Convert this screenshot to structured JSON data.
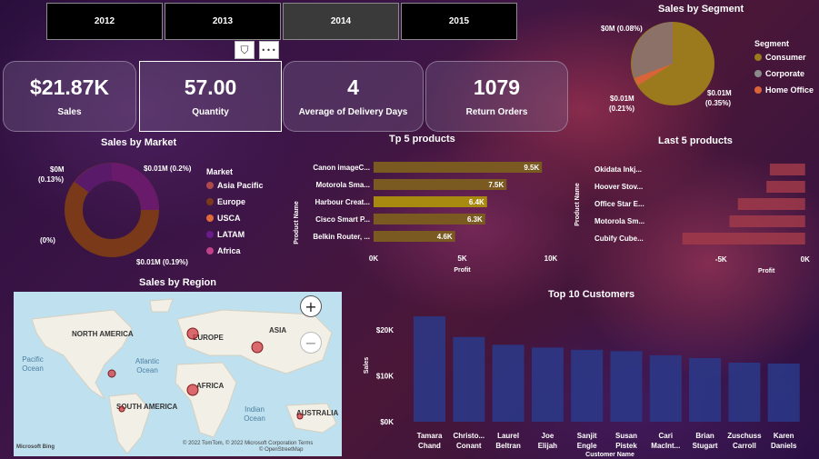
{
  "years": [
    {
      "label": "2012",
      "selected": false
    },
    {
      "label": "2013",
      "selected": false
    },
    {
      "label": "2014",
      "selected": true
    },
    {
      "label": "2015",
      "selected": false
    }
  ],
  "toolbar": {
    "filter_icon": "filter-icon",
    "more_icon": "more-options-icon",
    "more_glyph": "•••",
    "filter_glyph": "⛉"
  },
  "kpis": [
    {
      "value": "$21.87K",
      "label": "Sales"
    },
    {
      "value": "57.00",
      "label": "Quantity"
    },
    {
      "value": "4",
      "label": "Average of Delivery Days"
    },
    {
      "value": "1079",
      "label": "Return Orders"
    }
  ],
  "segment": {
    "title": "Sales by Segment",
    "legend_title": "Segment",
    "legend": [
      {
        "name": "Consumer",
        "color": "#9a7a1c"
      },
      {
        "name": "Corporate",
        "color": "#8a8a8a"
      },
      {
        "name": "Home Office",
        "color": "#d9643a"
      }
    ],
    "labels": [
      "$0M (0.08%)",
      "$0.01M",
      "(0.21%)",
      "$0.01M",
      "(0.35%)"
    ]
  },
  "market": {
    "title": "Sales by Market",
    "legend_title": "Market",
    "legend": [
      {
        "name": "Asia Pacific",
        "color": "#b04a4a"
      },
      {
        "name": "Europe",
        "color": "#7a3a1a"
      },
      {
        "name": "USCA",
        "color": "#e06a3a"
      },
      {
        "name": "LATAM",
        "color": "#6a1a8a"
      },
      {
        "name": "Africa",
        "color": "#c0408a"
      }
    ],
    "labels": [
      "$0M",
      "(0.13%)",
      "$0.01M (0.2%)",
      "(0%)",
      "$0.01M (0.19%)"
    ]
  },
  "region": {
    "title": "Sales by Region",
    "continents": [
      "NORTH AMERICA",
      "EUROPE",
      "ASIA",
      "AFRICA",
      "SOUTH AMERICA",
      "AUSTRALIA"
    ],
    "oceans": [
      "Pacific Ocean",
      "Atlantic Ocean",
      "Indian Ocean"
    ],
    "zoom_in": "+",
    "zoom_out": "−",
    "attribution": "© 2022 TomTom, © 2022 Microsoft Corporation  Terms",
    "attribution2": "© OpenStreetMap",
    "logo": "Microsoft Bing"
  },
  "chart_data": [
    {
      "type": "bar",
      "title": "Tp 5 products",
      "orientation": "horizontal",
      "ylabel": "Product Name",
      "xlabel": "Profit",
      "categories": [
        "Canon imageC...",
        "Motorola Sma...",
        "Harbour Creat...",
        "Cisco Smart P...",
        "Belkin Router, ..."
      ],
      "values": [
        9.5,
        7.5,
        6.4,
        6.3,
        4.6
      ],
      "value_labels": [
        "9.5K",
        "7.5K",
        "6.4K",
        "6.3K",
        "4.6K"
      ],
      "xticks": [
        "0K",
        "5K",
        "10K"
      ],
      "xlim": [
        0,
        10
      ],
      "colors": [
        "#7a5a20",
        "#7a5a20",
        "#a88a10",
        "#7a5a20",
        "#7a5a20"
      ]
    },
    {
      "type": "bar",
      "title": "Last 5 products",
      "orientation": "horizontal",
      "ylabel": "Product Name",
      "xlabel": "Profit",
      "categories": [
        "Okidata Inkj...",
        "Hoover Stov...",
        "Office Star E...",
        "Motorola Sm...",
        "Cubify Cube..."
      ],
      "values": [
        -2.1,
        -2.3,
        -4.0,
        -4.5,
        -7.3
      ],
      "xticks": [
        "-5K",
        "0K"
      ],
      "xlim": [
        -7.5,
        0.5
      ],
      "color": "#a03a4a"
    },
    {
      "type": "bar",
      "title": "Top 10 Customers",
      "ylabel": "Sales",
      "xlabel": "Customer Name",
      "categories": [
        "Tamara Chand",
        "Christo... Conant",
        "Laurel Beltran",
        "Joe Elijah",
        "Sanjit Engle",
        "Susan Pistek",
        "Cari MacInt...",
        "Brian Stugart",
        "Zuschuss Carroll",
        "Karen Daniels"
      ],
      "values": [
        23000,
        18500,
        16800,
        16200,
        15700,
        15400,
        14500,
        13900,
        12900,
        12700
      ],
      "yticks": [
        "$0K",
        "$10K",
        "$20K"
      ],
      "ylim": [
        0,
        25000
      ],
      "color": "#2a3a8a"
    }
  ]
}
